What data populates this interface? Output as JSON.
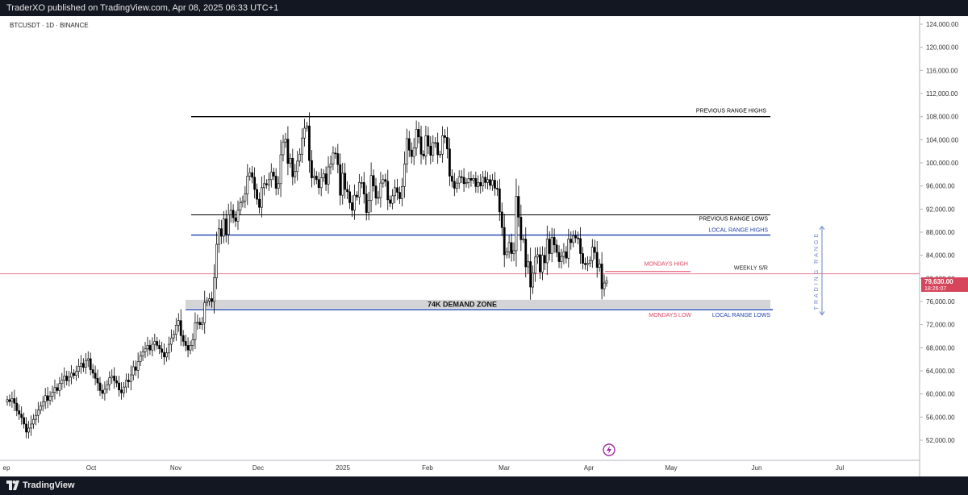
{
  "header": {
    "published_text": "TraderXO published on TradingView.com, Apr 08, 2025 06:33 UTC+1"
  },
  "footer": {
    "brand": "TradingView"
  },
  "colors": {
    "up": "#000000",
    "down": "#000000",
    "black_line": "#000000",
    "blue_line": "#1e40af",
    "red_line": "#e57a91",
    "red_text": "#e0435f",
    "zone_fill": "#d4d4d6",
    "arrow": "#6a86c0",
    "badge_bg": "#d6455c"
  },
  "chart_data": {
    "type": "candlestick",
    "symbol_title": "BTCUSDT · 1D · BINANCE",
    "y_ticks": [
      "124,000.00",
      "120,000.00",
      "116,000.00",
      "112,000.00",
      "108,000.00",
      "104,000.00",
      "100,000.00",
      "96,000.00",
      "92,000.00",
      "88,000.00",
      "84,000.00",
      "80,000.00",
      "76,000.00",
      "72,000.00",
      "68,000.00",
      "64,000.00",
      "60,000.00",
      "56,000.00",
      "52,000.00"
    ],
    "x_ticks": [
      "ep",
      "Oct",
      "Nov",
      "Dec",
      "2025",
      "Feb",
      "Mar",
      "Apr",
      "May",
      "Jun",
      "Jul"
    ],
    "ylim": [
      50000,
      126000
    ],
    "last_price": {
      "label": "79,630.00",
      "countdown": "18:26:07",
      "value": 79630
    },
    "levels": [
      {
        "label": "PREVIOUS RANGE HIGHS",
        "price": 108000,
        "color": "#000000"
      },
      {
        "label": "PREVIOUS RANGE LOWS",
        "price": 91000,
        "color": "#000000"
      },
      {
        "label": "LOCAL RANGE HIGHS",
        "price": 87500,
        "color": "#1e40af"
      },
      {
        "label": "WEEKLY S/R",
        "price": 80800,
        "color": "#e57a91"
      },
      {
        "label": "MONDAYS HIGH",
        "price": 81200,
        "color": "#e0435f"
      },
      {
        "label": "MONDAYS LOW",
        "price": 74600,
        "color": "#e0435f"
      },
      {
        "label": "LOCAL RANGE LOWS",
        "price": 74600,
        "color": "#1e40af"
      }
    ],
    "zone": {
      "label": "74K DEMAND ZONE",
      "top": 76300,
      "bottom": 74800
    },
    "side_label": "TRADING RANGE",
    "closes": [
      59000,
      58700,
      59200,
      58400,
      57100,
      56500,
      55900,
      54800,
      53400,
      54100,
      54800,
      55600,
      56300,
      57200,
      57900,
      58600,
      59700,
      58900,
      59600,
      60300,
      61100,
      60600,
      61800,
      62400,
      63100,
      62300,
      62900,
      63600,
      63200,
      63900,
      64800,
      65300,
      64600,
      65800,
      66100,
      64200,
      63600,
      62700,
      61900,
      60600,
      60100,
      60800,
      61600,
      62800,
      63100,
      62300,
      61900,
      60700,
      60200,
      61200,
      62400,
      62100,
      63300,
      64700,
      64100,
      65600,
      66600,
      67300,
      67800,
      68400,
      67600,
      68600,
      69100,
      68400,
      67800,
      67200,
      66400,
      67100,
      68600,
      69700,
      70300,
      71900,
      72700,
      70100,
      69100,
      68400,
      67600,
      68400,
      69400,
      72300,
      72400,
      72000,
      72300,
      75800,
      76100,
      76500,
      76000,
      80100,
      85900,
      88600,
      87300,
      90300,
      87600,
      91000,
      91800,
      90500,
      89900,
      91800,
      93100,
      93400,
      94600,
      97700,
      98300,
      97500,
      95400,
      93700,
      92300,
      95700,
      96400,
      96200,
      97100,
      98400,
      97700,
      95600,
      96400,
      101400,
      103600,
      104100,
      99900,
      100800,
      97600,
      98500,
      100300,
      101500,
      104300,
      106000,
      106400,
      100400,
      97400,
      97700,
      97100,
      95700,
      97400,
      98100,
      96300,
      99300,
      99800,
      101700,
      101600,
      99700,
      94400,
      98200,
      95400,
      95000,
      93100,
      91800,
      94400,
      94100,
      96600,
      96600,
      94600,
      91400,
      93500,
      97800,
      96000,
      93900,
      94000,
      96500,
      97100,
      96800,
      93600,
      93000,
      94300,
      95700,
      94900,
      93800,
      95900,
      99800,
      104200,
      102200,
      101100,
      102600,
      105800,
      104500,
      101500,
      101200,
      104700,
      102900,
      101300,
      103500,
      103500,
      101400,
      101500,
      104700,
      104400,
      102400,
      97700,
      96800,
      95600,
      96500,
      97600,
      97500,
      96400,
      96600,
      97300,
      97000,
      97300,
      95900,
      96600,
      96000,
      97500,
      96600,
      97100,
      96100,
      97000,
      95600,
      95500,
      91500,
      88800,
      84100,
      84600,
      86200,
      84300,
      84800,
      94200,
      90600,
      86700,
      86800,
      82000,
      82900,
      78500,
      80900,
      83700,
      84100,
      81100,
      84000,
      82700,
      86800,
      84300,
      87100,
      85800,
      84500,
      82900,
      83800,
      84600,
      83500,
      86800,
      86200,
      87400,
      87000,
      86900,
      84300,
      82600,
      82400,
      82600,
      83100,
      85400,
      84500,
      81900,
      82500,
      78200,
      79200,
      79600
    ]
  }
}
